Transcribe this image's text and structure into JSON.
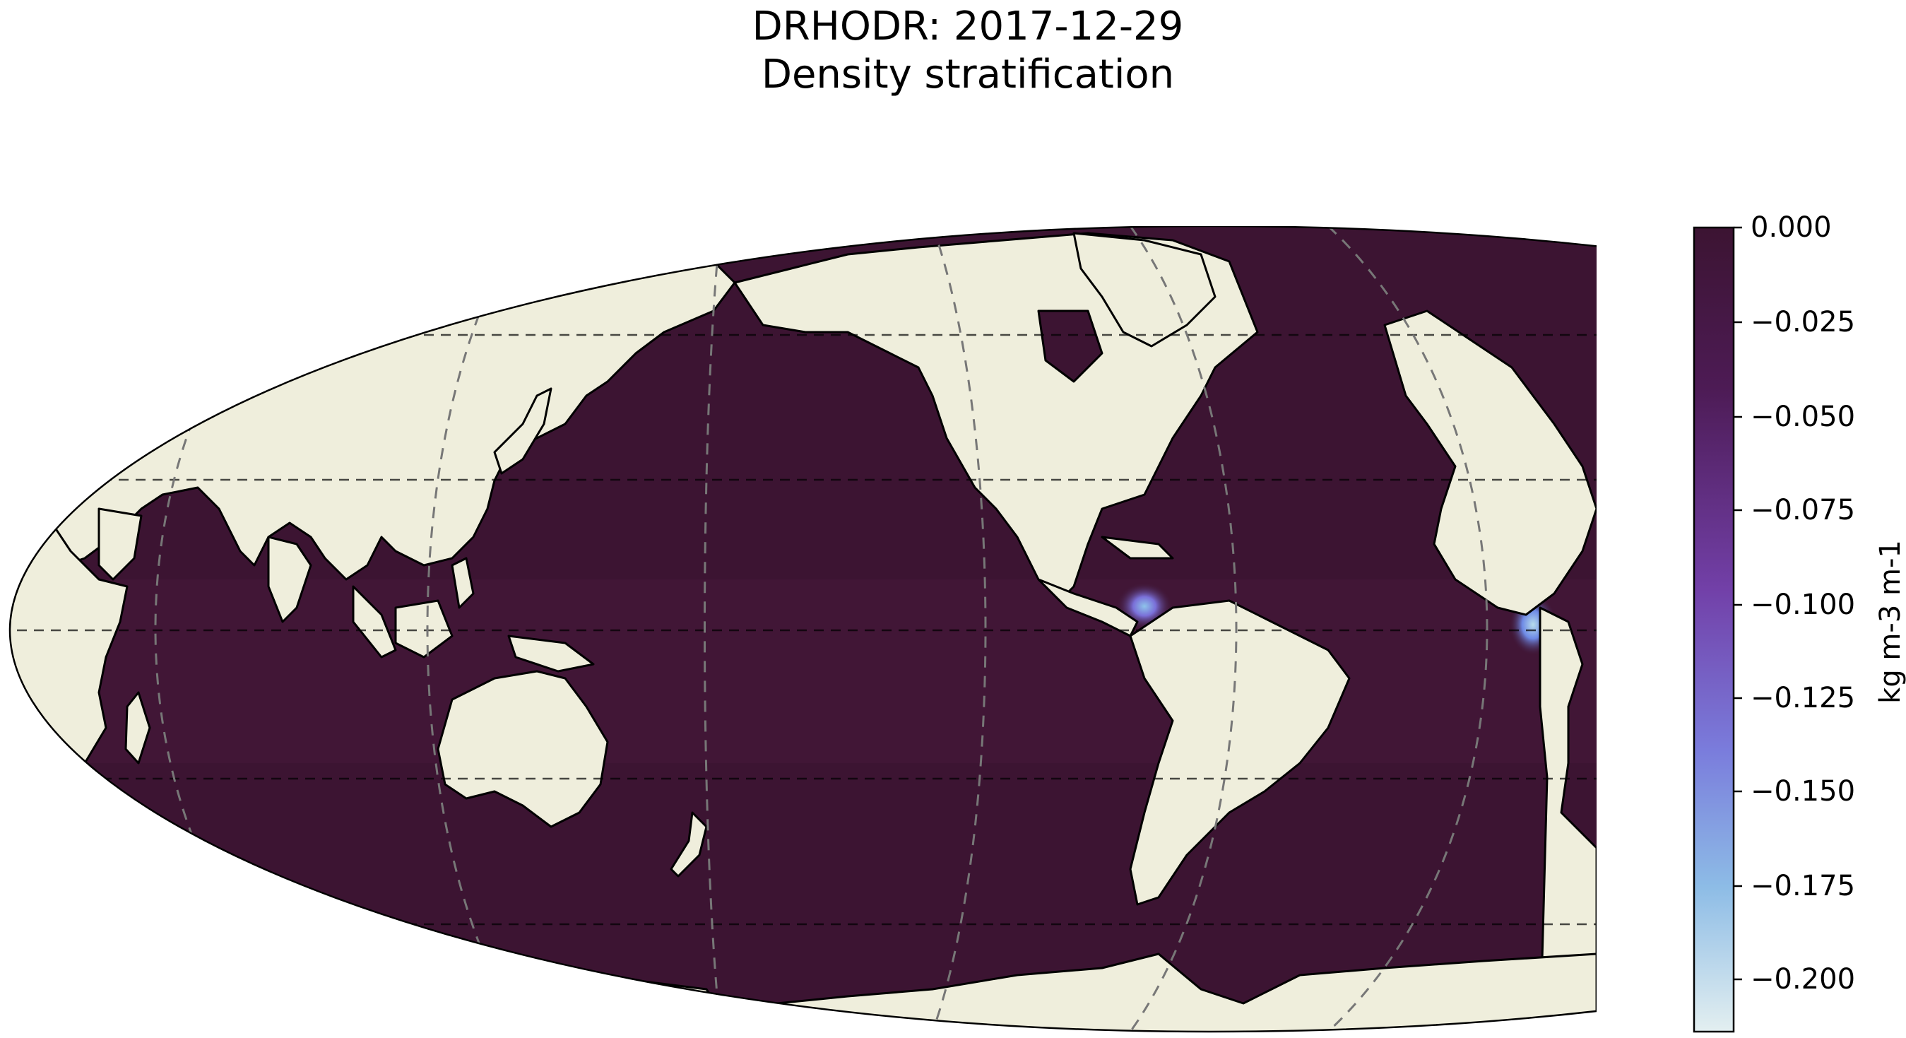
{
  "figure": {
    "title_line1": "DRHODR: 2017-12-29",
    "title_line2": "Density stratification"
  },
  "map": {
    "projection": "robinson",
    "central_longitude": 180,
    "variable": "DRHODR",
    "date": "2017-12-29",
    "gridlines": "dashed",
    "land_color": "#efeedc",
    "ocean_color": "#3c1432",
    "anomalies": [
      {
        "region": "Gulf of Panama",
        "level": -0.11
      },
      {
        "region": "Gulf of Guinea / Niger delta",
        "level": -0.13
      }
    ]
  },
  "colorbar": {
    "label": "kg m-3 m-1",
    "range": [
      -0.212,
      0.0
    ],
    "cmap_stops": [
      "#3c1432",
      "#5a2470",
      "#7a54c2",
      "#6ea0e4",
      "#a8d4e6",
      "#e2eef0"
    ],
    "ticks": [
      "0.000",
      "−0.025",
      "−0.050",
      "−0.075",
      "−0.100",
      "−0.125",
      "−0.150",
      "−0.175",
      "−0.200"
    ]
  }
}
